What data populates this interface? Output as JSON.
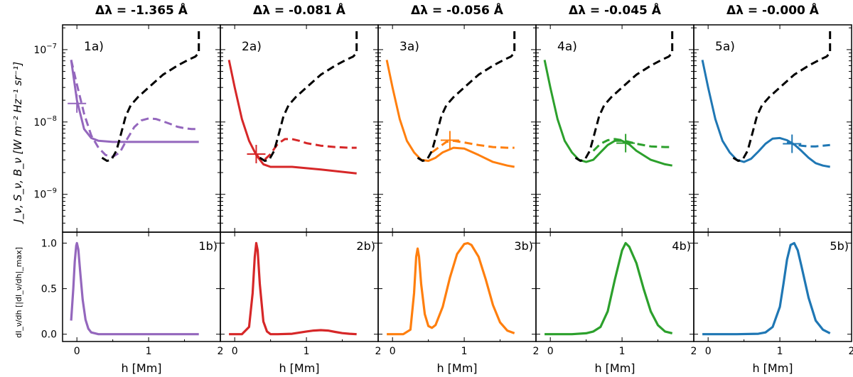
{
  "figure": {
    "ylabel_top": "J_ν, S_ν, B_ν [W m⁻² Hz⁻¹ sr⁻¹]",
    "ylabel_bottom": "dI_ν/dh [|dI_ν/dh|_max]",
    "xlabel": "h [Mm]",
    "colors": {
      "purple": "#9467bd",
      "red": "#d62728",
      "orange": "#ff7f0e",
      "green": "#2ca02c",
      "blue": "#1f77b4",
      "planck": "#000000"
    }
  },
  "chart_data": [
    {
      "type": "line",
      "panel": "1a)",
      "title": "Δλ = -1.365 Å",
      "color": "#9467bd",
      "xlim": [
        -0.2,
        2.0
      ],
      "ylim": [
        3e-10,
        2.2e-07
      ],
      "yscale": "log",
      "series": [
        {
          "name": "J",
          "style": "dashed",
          "x": [
            -0.08,
            0.0,
            0.1,
            0.2,
            0.3,
            0.4,
            0.5,
            0.6,
            0.7,
            0.8,
            0.9,
            1.0,
            1.1,
            1.2,
            1.3,
            1.4,
            1.5,
            1.6,
            1.7
          ],
          "y": [
            7.2e-08,
            3.3e-08,
            1.3e-08,
            6.5e-09,
            4.4e-09,
            3.5e-09,
            3.3e-09,
            3.8e-09,
            5.8e-09,
            8.5e-09,
            1.05e-08,
            1.12e-08,
            1.1e-08,
            1.02e-08,
            9.4e-09,
            8.6e-09,
            8.2e-09,
            8e-09,
            8e-09
          ]
        },
        {
          "name": "S",
          "style": "solid",
          "x": [
            -0.08,
            0.0,
            0.1,
            0.2,
            0.3,
            0.5,
            0.8,
            1.2,
            1.7
          ],
          "y": [
            7.2e-08,
            2e-08,
            8e-09,
            6e-09,
            5.5e-09,
            5.3e-09,
            5.3e-09,
            5.3e-09,
            5.3e-09
          ]
        },
        {
          "name": "B",
          "style": "dashed",
          "x": [
            0.35,
            0.42,
            0.48,
            0.55,
            0.6,
            0.68,
            0.75,
            0.85,
            1.0,
            1.2,
            1.4,
            1.55,
            1.65,
            1.7,
            1.7
          ],
          "y": [
            3.2e-09,
            2.9e-09,
            3e-09,
            4e-09,
            6e-09,
            1.2e-08,
            1.7e-08,
            2.2e-08,
            3e-08,
            4.5e-08,
            6e-08,
            7.2e-08,
            8e-08,
            9e-08,
            2e-07
          ]
        }
      ],
      "tau_marker": {
        "x": 0.0,
        "y": 1.8e-08
      }
    },
    {
      "type": "line",
      "panel": "2a)",
      "title": "Δλ = -0.081 Å",
      "color": "#d62728",
      "xlim": [
        -0.2,
        2.0
      ],
      "ylim": [
        3e-10,
        2.2e-07
      ],
      "yscale": "log",
      "series": [
        {
          "name": "J",
          "style": "dashed",
          "x": [
            0.3,
            0.35,
            0.4,
            0.5,
            0.6,
            0.7,
            0.8,
            0.9,
            1.0,
            1.2,
            1.4,
            1.6,
            1.7
          ],
          "y": [
            3.6e-09,
            3.1e-09,
            2.9e-09,
            3.6e-09,
            5e-09,
            5.8e-09,
            5.8e-09,
            5.5e-09,
            5.1e-09,
            4.7e-09,
            4.5e-09,
            4.4e-09,
            4.4e-09
          ]
        },
        {
          "name": "S",
          "style": "solid",
          "x": [
            -0.08,
            0.0,
            0.1,
            0.2,
            0.3,
            0.4,
            0.5,
            0.8,
            1.2,
            1.7
          ],
          "y": [
            7.2e-08,
            3e-08,
            1.1e-08,
            5.5e-09,
            3.5e-09,
            2.6e-09,
            2.4e-09,
            2.4e-09,
            2.2e-09,
            1.95e-09
          ]
        },
        {
          "name": "B",
          "style": "dashed",
          "x": [
            0.35,
            0.42,
            0.48,
            0.55,
            0.6,
            0.68,
            0.75,
            0.85,
            1.0,
            1.2,
            1.4,
            1.55,
            1.65,
            1.7,
            1.7
          ],
          "y": [
            3.2e-09,
            2.9e-09,
            3e-09,
            4e-09,
            6e-09,
            1.2e-08,
            1.7e-08,
            2.2e-08,
            3e-08,
            4.5e-08,
            6e-08,
            7.2e-08,
            8e-08,
            9e-08,
            2e-07
          ]
        }
      ],
      "tau_marker": {
        "x": 0.3,
        "y": 3.6e-09
      }
    },
    {
      "type": "line",
      "panel": "3a)",
      "title": "Δλ = -0.056 Å",
      "color": "#ff7f0e",
      "xlim": [
        -0.2,
        2.0
      ],
      "ylim": [
        3e-10,
        2.2e-07
      ],
      "yscale": "log",
      "series": [
        {
          "name": "J",
          "style": "dashed",
          "x": [
            0.55,
            0.65,
            0.75,
            0.85,
            1.0,
            1.2,
            1.4,
            1.6,
            1.7
          ],
          "y": [
            3.8e-09,
            4.5e-09,
            5.3e-09,
            5.5e-09,
            5.2e-09,
            4.8e-09,
            4.5e-09,
            4.4e-09,
            4.4e-09
          ]
        },
        {
          "name": "S",
          "style": "solid",
          "x": [
            -0.08,
            0.0,
            0.1,
            0.2,
            0.3,
            0.4,
            0.5,
            0.6,
            0.7,
            0.85,
            1.0,
            1.2,
            1.4,
            1.6,
            1.7
          ],
          "y": [
            7.2e-08,
            3e-08,
            1.1e-08,
            5.5e-09,
            3.8e-09,
            3e-09,
            2.9e-09,
            3.2e-09,
            3.8e-09,
            4.4e-09,
            4.3e-09,
            3.5e-09,
            2.8e-09,
            2.5e-09,
            2.4e-09
          ]
        },
        {
          "name": "B",
          "style": "dashed",
          "x": [
            0.35,
            0.42,
            0.48,
            0.55,
            0.6,
            0.68,
            0.75,
            0.85,
            1.0,
            1.2,
            1.4,
            1.55,
            1.65,
            1.7,
            1.7
          ],
          "y": [
            3.2e-09,
            2.9e-09,
            3e-09,
            4e-09,
            6e-09,
            1.2e-08,
            1.7e-08,
            2.2e-08,
            3e-08,
            4.5e-08,
            6e-08,
            7.2e-08,
            8e-08,
            9e-08,
            2e-07
          ]
        }
      ],
      "tau_marker": {
        "x": 0.8,
        "y": 5.6e-09
      }
    },
    {
      "type": "line",
      "panel": "4a)",
      "title": "Δλ = -0.045 Å",
      "color": "#2ca02c",
      "xlim": [
        -0.2,
        2.0
      ],
      "ylim": [
        3e-10,
        2.2e-07
      ],
      "yscale": "log",
      "series": [
        {
          "name": "J",
          "style": "dashed",
          "x": [
            0.6,
            0.7,
            0.8,
            0.9,
            1.0,
            1.2,
            1.4,
            1.6,
            1.7
          ],
          "y": [
            4e-09,
            5e-09,
            5.6e-09,
            5.8e-09,
            5.6e-09,
            5e-09,
            4.6e-09,
            4.5e-09,
            4.5e-09
          ]
        },
        {
          "name": "S",
          "style": "solid",
          "x": [
            -0.08,
            0.0,
            0.1,
            0.2,
            0.3,
            0.4,
            0.5,
            0.6,
            0.7,
            0.8,
            0.9,
            1.0,
            1.1,
            1.2,
            1.4,
            1.6,
            1.7
          ],
          "y": [
            7.2e-08,
            3e-08,
            1.1e-08,
            5.5e-09,
            3.8e-09,
            3e-09,
            2.8e-09,
            3e-09,
            3.8e-09,
            4.8e-09,
            5.5e-09,
            5.5e-09,
            4.9e-09,
            4e-09,
            3e-09,
            2.6e-09,
            2.5e-09
          ]
        },
        {
          "name": "B",
          "style": "dashed",
          "x": [
            0.35,
            0.42,
            0.48,
            0.55,
            0.6,
            0.68,
            0.75,
            0.85,
            1.0,
            1.2,
            1.4,
            1.55,
            1.65,
            1.7,
            1.7
          ],
          "y": [
            3.2e-09,
            2.9e-09,
            3e-09,
            4e-09,
            6e-09,
            1.2e-08,
            1.7e-08,
            2.2e-08,
            3e-08,
            4.5e-08,
            6e-08,
            7.2e-08,
            8e-08,
            9e-08,
            2e-07
          ]
        }
      ],
      "tau_marker": {
        "x": 1.05,
        "y": 5.1e-09
      }
    },
    {
      "type": "line",
      "panel": "5a)",
      "title": "Δλ = -0.000 Å",
      "color": "#1f77b4",
      "xlim": [
        -0.2,
        2.0
      ],
      "ylim": [
        3e-10,
        2.2e-07
      ],
      "yscale": "log",
      "series": [
        {
          "name": "J",
          "style": "dashed",
          "x": [
            1.1,
            1.2,
            1.3,
            1.4,
            1.5,
            1.6,
            1.7
          ],
          "y": [
            5.3e-09,
            4.9e-09,
            4.7e-09,
            4.6e-09,
            4.6e-09,
            4.7e-09,
            4.8e-09
          ]
        },
        {
          "name": "S",
          "style": "solid",
          "x": [
            -0.08,
            0.0,
            0.1,
            0.2,
            0.3,
            0.4,
            0.5,
            0.6,
            0.7,
            0.8,
            0.9,
            1.0,
            1.1,
            1.2,
            1.3,
            1.4,
            1.5,
            1.6,
            1.7
          ],
          "y": [
            7.2e-08,
            3e-08,
            1.1e-08,
            5.5e-09,
            3.8e-09,
            3e-09,
            2.8e-09,
            3.1e-09,
            3.9e-09,
            5e-09,
            5.9e-09,
            6e-09,
            5.6e-09,
            4.9e-09,
            4e-09,
            3.2e-09,
            2.7e-09,
            2.5e-09,
            2.4e-09
          ]
        },
        {
          "name": "B",
          "style": "dashed",
          "x": [
            0.35,
            0.42,
            0.48,
            0.55,
            0.6,
            0.68,
            0.75,
            0.85,
            1.0,
            1.2,
            1.4,
            1.55,
            1.65,
            1.7,
            1.7
          ],
          "y": [
            3.2e-09,
            2.9e-09,
            3e-09,
            4e-09,
            6e-09,
            1.2e-08,
            1.7e-08,
            2.2e-08,
            3e-08,
            4.5e-08,
            6e-08,
            7.2e-08,
            8e-08,
            9e-08,
            2e-07
          ]
        }
      ],
      "tau_marker": {
        "x": 1.17,
        "y": 5e-09
      }
    },
    {
      "type": "line",
      "panel": "1b)",
      "color": "#9467bd",
      "xlim": [
        -0.2,
        2.0
      ],
      "ylim": [
        -0.08,
        1.12
      ],
      "x": [
        -0.08,
        -0.05,
        -0.03,
        -0.01,
        0.0,
        0.02,
        0.05,
        0.08,
        0.12,
        0.16,
        0.2,
        0.3,
        0.5,
        1.0,
        1.7
      ],
      "y": [
        0.15,
        0.5,
        0.8,
        0.97,
        1.0,
        0.93,
        0.65,
        0.38,
        0.16,
        0.06,
        0.02,
        0.0,
        0.0,
        0.0,
        0.0
      ]
    },
    {
      "type": "line",
      "panel": "2b)",
      "color": "#d62728",
      "xlim": [
        -0.2,
        2.0
      ],
      "ylim": [
        -0.08,
        1.12
      ],
      "x": [
        -0.08,
        0.1,
        0.2,
        0.25,
        0.28,
        0.3,
        0.32,
        0.35,
        0.4,
        0.45,
        0.5,
        0.6,
        0.8,
        1.0,
        1.1,
        1.2,
        1.3,
        1.4,
        1.5,
        1.6,
        1.7
      ],
      "y": [
        0.0,
        0.0,
        0.08,
        0.45,
        0.85,
        1.0,
        0.92,
        0.55,
        0.14,
        0.03,
        0.0,
        0.0,
        0.005,
        0.03,
        0.04,
        0.045,
        0.04,
        0.025,
        0.012,
        0.005,
        0.0
      ]
    },
    {
      "type": "line",
      "panel": "3b)",
      "color": "#ff7f0e",
      "xlim": [
        -0.2,
        2.0
      ],
      "ylim": [
        -0.08,
        1.12
      ],
      "x": [
        -0.08,
        0.15,
        0.25,
        0.3,
        0.33,
        0.35,
        0.37,
        0.4,
        0.45,
        0.5,
        0.55,
        0.6,
        0.7,
        0.8,
        0.9,
        1.0,
        1.05,
        1.1,
        1.2,
        1.3,
        1.4,
        1.5,
        1.6,
        1.7
      ],
      "y": [
        0.0,
        0.0,
        0.05,
        0.45,
        0.85,
        0.94,
        0.85,
        0.55,
        0.22,
        0.09,
        0.07,
        0.1,
        0.3,
        0.62,
        0.88,
        0.99,
        1.0,
        0.98,
        0.85,
        0.6,
        0.32,
        0.13,
        0.04,
        0.01
      ]
    },
    {
      "type": "line",
      "panel": "4b)",
      "color": "#2ca02c",
      "xlim": [
        -0.2,
        2.0
      ],
      "ylim": [
        -0.08,
        1.12
      ],
      "x": [
        -0.08,
        0.3,
        0.5,
        0.6,
        0.7,
        0.8,
        0.9,
        1.0,
        1.05,
        1.1,
        1.2,
        1.3,
        1.4,
        1.5,
        1.6,
        1.7
      ],
      "y": [
        0.0,
        0.0,
        0.01,
        0.03,
        0.08,
        0.25,
        0.6,
        0.92,
        1.0,
        0.96,
        0.78,
        0.5,
        0.25,
        0.1,
        0.03,
        0.01
      ]
    },
    {
      "type": "line",
      "panel": "5b)",
      "color": "#1f77b4",
      "xlim": [
        -0.2,
        2.0
      ],
      "ylim": [
        -0.08,
        1.12
      ],
      "x": [
        -0.08,
        0.4,
        0.7,
        0.8,
        0.9,
        1.0,
        1.05,
        1.1,
        1.15,
        1.2,
        1.25,
        1.3,
        1.4,
        1.5,
        1.6,
        1.7
      ],
      "y": [
        0.0,
        0.0,
        0.005,
        0.02,
        0.08,
        0.3,
        0.55,
        0.82,
        0.98,
        1.0,
        0.92,
        0.75,
        0.4,
        0.15,
        0.05,
        0.01
      ]
    }
  ]
}
